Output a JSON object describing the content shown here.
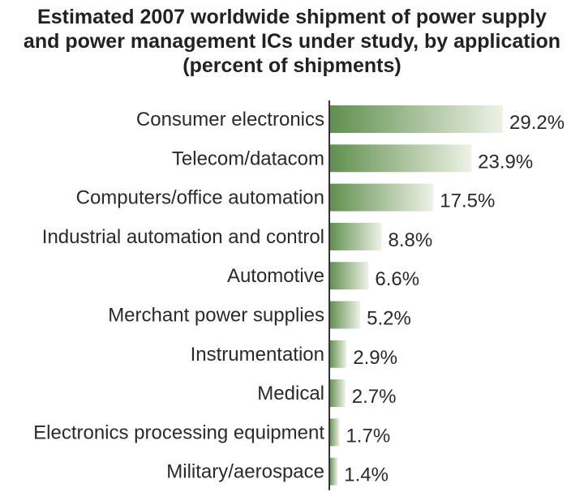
{
  "chart_data": {
    "type": "bar",
    "orientation": "horizontal",
    "title_lines": [
      "Estimated 2007 worldwide shipment of power supply",
      "and power management ICs under study, by application",
      "(percent of shipments)"
    ],
    "categories": [
      "Consumer electronics",
      "Telecom/datacom",
      "Computers/office automation",
      "Industrial automation and control",
      "Automotive",
      "Merchant power supplies",
      "Instrumentation",
      "Medical",
      "Electronics processing equipment",
      "Military/aerospace"
    ],
    "values": [
      29.2,
      23.9,
      17.5,
      8.8,
      6.6,
      5.2,
      2.9,
      2.7,
      1.7,
      1.4
    ],
    "value_labels": [
      "29.2%",
      "23.9%",
      "17.5%",
      "8.8%",
      "6.6%",
      "5.2%",
      "2.9%",
      "2.7%",
      "1.7%",
      "1.4%"
    ],
    "xlim": [
      0,
      29.2
    ],
    "grid": false,
    "legend": "none",
    "colors": {
      "bar_dark": "#5f8f4e",
      "bar_light": "#eef2e6",
      "axis": "#333333"
    }
  }
}
